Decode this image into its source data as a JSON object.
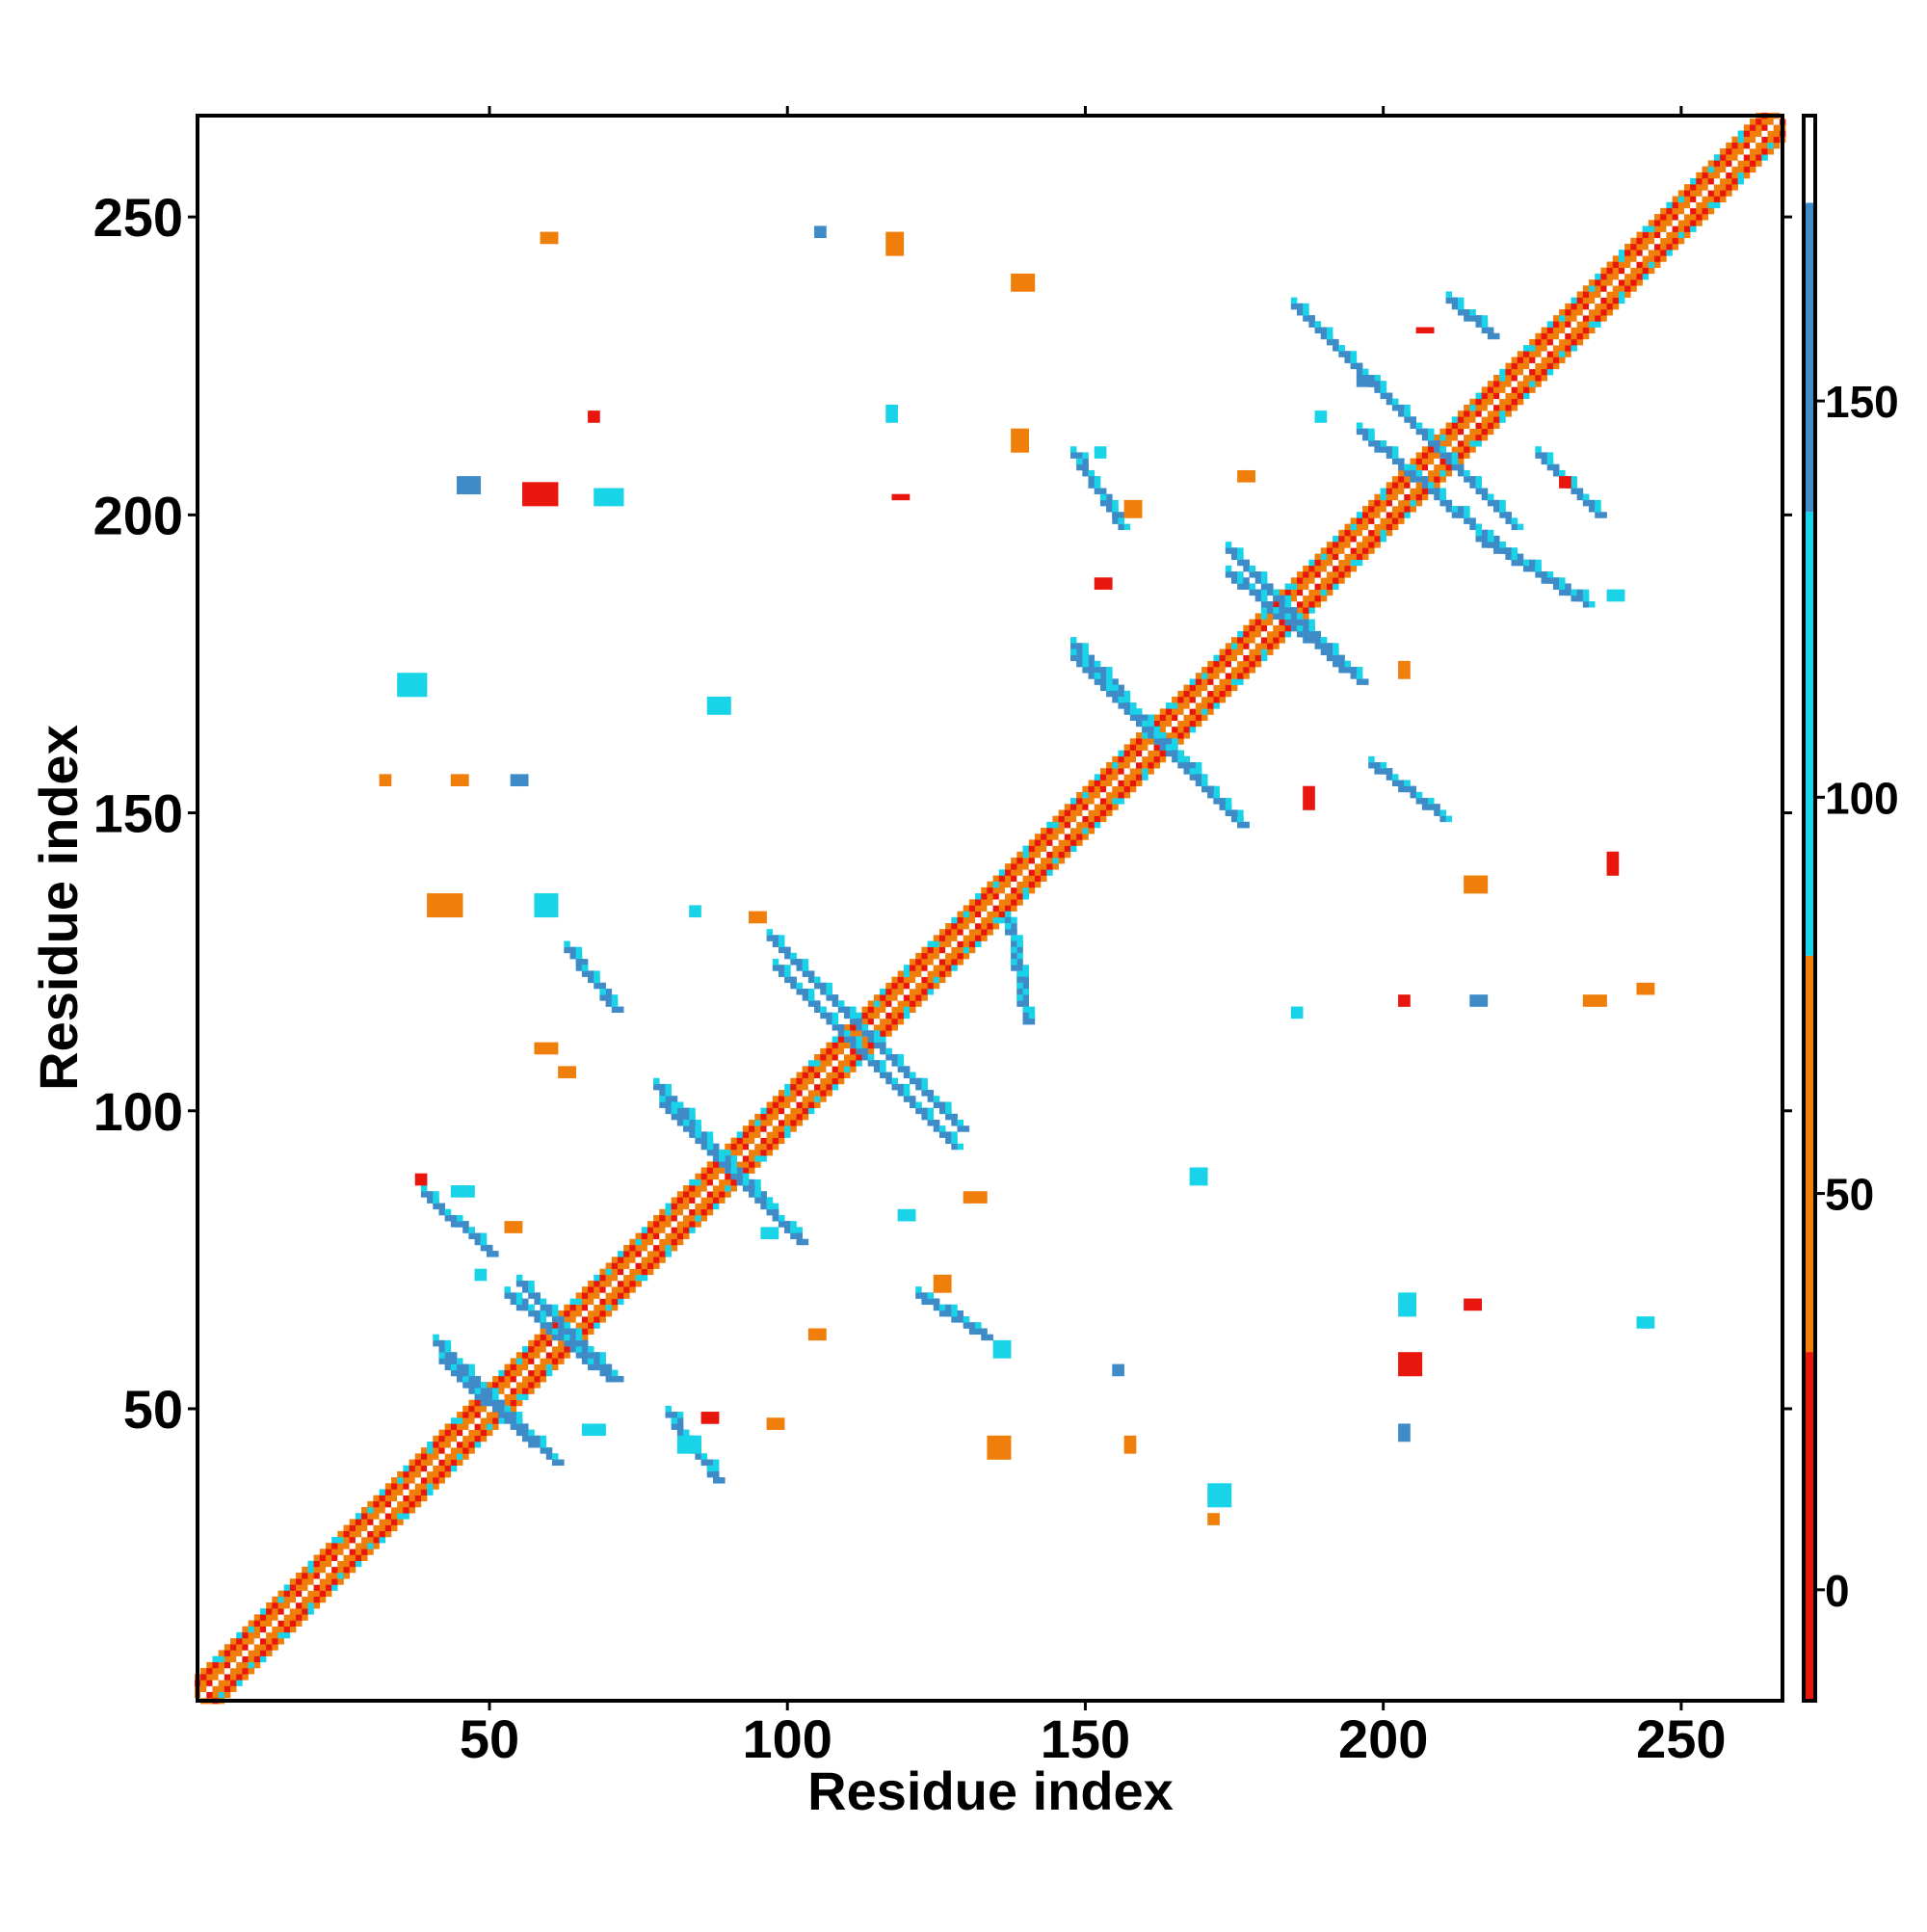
{
  "chart_data": {
    "type": "heatmap",
    "title": "",
    "xlabel": "Residue index",
    "ylabel": "Residue index",
    "xlim": [
      1,
      267
    ],
    "ylim": [
      1,
      267
    ],
    "x_ticks": [
      50,
      100,
      150,
      200,
      250
    ],
    "y_ticks": [
      50,
      100,
      150,
      200,
      250
    ],
    "grid": false,
    "legend": "none",
    "colorbar": {
      "ticks": [
        0,
        50,
        100,
        150
      ],
      "range": [
        -14,
        186
      ],
      "color_stops": [
        {
          "from": -14,
          "to": 30,
          "color": "#e8160c"
        },
        {
          "from": 30,
          "to": 80,
          "color": "#f07e0a"
        },
        {
          "from": 80,
          "to": 136,
          "color": "#19d4e8"
        },
        {
          "from": 136,
          "to": 175,
          "color": "#3e8bc8"
        },
        {
          "from": 175,
          "to": 186,
          "color": "#ffffff"
        }
      ]
    },
    "diagonal_band": {
      "from": 1,
      "to": 267,
      "width": 4,
      "colors": [
        "#e8160c",
        "#f07e0a",
        "#19d4e8"
      ]
    },
    "cross_patterns": [
      {
        "center": [
          113,
          113
        ],
        "arm": 16,
        "color": "#3e8bc8",
        "outline": "#19d4e8"
      },
      {
        "center": [
          90,
          90
        ],
        "arm": 11,
        "color": "#3e8bc8",
        "outline": "#19d4e8"
      },
      {
        "center": [
          162,
          162
        ],
        "arm": 14,
        "color": "#3e8bc8",
        "outline": "#19d4e8"
      },
      {
        "center": [
          184,
          184
        ],
        "arm": 10,
        "color": "#3e8bc8",
        "outline": "#19d4e8"
      },
      {
        "center": [
          210,
          210
        ],
        "arm": 12,
        "color": "#3e8bc8",
        "outline": "#19d4e8"
      },
      {
        "center": [
          51,
          51
        ],
        "arm": 10,
        "color": "#3e8bc8",
        "outline": "#19d4e8"
      },
      {
        "center": [
          63,
          63
        ],
        "arm": 8,
        "color": "#3e8bc8",
        "outline": "#19d4e8"
      }
    ],
    "strands": [
      {
        "from": [
          98,
          124
        ],
        "to": [
          128,
          94
        ],
        "color": "#3e8bc8"
      },
      {
        "from": [
          78,
          104
        ],
        "to": [
          102,
          78
        ],
        "color": "#3e8bc8"
      },
      {
        "from": [
          148,
          178
        ],
        "to": [
          176,
          148
        ],
        "color": "#3e8bc8"
      },
      {
        "from": [
          174,
          190
        ],
        "to": [
          196,
          172
        ],
        "color": "#3e8bc8"
      },
      {
        "from": [
          196,
          214
        ],
        "to": [
          222,
          192
        ],
        "color": "#3e8bc8"
      },
      {
        "from": [
          185,
          235
        ],
        "to": [
          198,
          222
        ],
        "color": "#3e8bc8"
      },
      {
        "from": [
          148,
          210
        ],
        "to": [
          156,
          198
        ],
        "color": "#3e8bc8"
      },
      {
        "from": [
          211,
          236
        ],
        "to": [
          218,
          230
        ],
        "color": "#3e8bc8"
      },
      {
        "from": [
          226,
          210
        ],
        "to": [
          236,
          200
        ],
        "color": "#3e8bc8"
      },
      {
        "from": [
          216,
          196
        ],
        "to": [
          234,
          185
        ],
        "color": "#3e8bc8"
      },
      {
        "from": [
          198,
          158
        ],
        "to": [
          210,
          149
        ],
        "color": "#3e8bc8"
      },
      {
        "from": [
          39,
          86
        ],
        "to": [
          50,
          76
        ],
        "color": "#3e8bc8"
      },
      {
        "from": [
          42,
          58
        ],
        "to": [
          57,
          44
        ],
        "color": "#3e8bc8"
      },
      {
        "from": [
          53,
          69
        ],
        "to": [
          70,
          55
        ],
        "color": "#3e8bc8"
      },
      {
        "from": [
          63,
          127
        ],
        "to": [
          71,
          117
        ],
        "color": "#3e8bc8"
      },
      {
        "from": [
          80,
          49
        ],
        "to": [
          88,
          38
        ],
        "color": "#3e8bc8"
      },
      {
        "from": [
          122,
          69
        ],
        "to": [
          133,
          62
        ],
        "color": "#3e8bc8"
      },
      {
        "from": [
          137,
          132
        ],
        "to": [
          140,
          115
        ],
        "color": "#3e8bc8"
      }
    ],
    "blobs": [
      {
        "x": 35,
        "y": 170,
        "w": 5,
        "h": 4,
        "color": "#19d4e8"
      },
      {
        "x": 40,
        "y": 133,
        "w": 6,
        "h": 4,
        "color": "#f07e0a"
      },
      {
        "x": 58,
        "y": 133,
        "w": 4,
        "h": 4,
        "color": "#19d4e8"
      },
      {
        "x": 56,
        "y": 202,
        "w": 6,
        "h": 4,
        "color": "#e8160c"
      },
      {
        "x": 68,
        "y": 202,
        "w": 5,
        "h": 3,
        "color": "#19d4e8"
      },
      {
        "x": 45,
        "y": 204,
        "w": 4,
        "h": 3,
        "color": "#3e8bc8"
      },
      {
        "x": 87,
        "y": 167,
        "w": 4,
        "h": 3,
        "color": "#19d4e8"
      },
      {
        "x": 54,
        "y": 155,
        "w": 3,
        "h": 2,
        "color": "#3e8bc8"
      },
      {
        "x": 104,
        "y": 62,
        "w": 3,
        "h": 2,
        "color": "#f07e0a"
      },
      {
        "x": 97,
        "y": 47,
        "w": 3,
        "h": 2,
        "color": "#f07e0a"
      },
      {
        "x": 134,
        "y": 42,
        "w": 4,
        "h": 4,
        "color": "#f07e0a"
      },
      {
        "x": 135,
        "y": 59,
        "w": 3,
        "h": 3,
        "color": "#19d4e8"
      },
      {
        "x": 171,
        "y": 34,
        "w": 4,
        "h": 4,
        "color": "#19d4e8"
      },
      {
        "x": 168,
        "y": 88,
        "w": 3,
        "h": 3,
        "color": "#19d4e8"
      },
      {
        "x": 203,
        "y": 66,
        "w": 3,
        "h": 4,
        "color": "#19d4e8"
      },
      {
        "x": 203,
        "y": 56,
        "w": 4,
        "h": 4,
        "color": "#e8160c"
      },
      {
        "x": 203,
        "y": 45,
        "w": 2,
        "h": 3,
        "color": "#3e8bc8"
      },
      {
        "x": 214,
        "y": 67,
        "w": 3,
        "h": 2,
        "color": "#e8160c"
      },
      {
        "x": 214,
        "y": 137,
        "w": 4,
        "h": 3,
        "color": "#f07e0a"
      },
      {
        "x": 238,
        "y": 140,
        "w": 2,
        "h": 4,
        "color": "#e8160c"
      },
      {
        "x": 138,
        "y": 238,
        "w": 4,
        "h": 3,
        "color": "#f07e0a"
      },
      {
        "x": 138,
        "y": 211,
        "w": 3,
        "h": 4,
        "color": "#f07e0a"
      },
      {
        "x": 67,
        "y": 216,
        "w": 2,
        "h": 2,
        "color": "#e8160c"
      },
      {
        "x": 117,
        "y": 216,
        "w": 2,
        "h": 3,
        "color": "#19d4e8"
      },
      {
        "x": 118,
        "y": 203,
        "w": 3,
        "h": 1,
        "color": "#e8160c"
      },
      {
        "x": 157,
        "y": 200,
        "w": 3,
        "h": 3,
        "color": "#f07e0a"
      },
      {
        "x": 176,
        "y": 206,
        "w": 3,
        "h": 2,
        "color": "#f07e0a"
      },
      {
        "x": 152,
        "y": 188,
        "w": 3,
        "h": 2,
        "color": "#e8160c"
      },
      {
        "x": 187,
        "y": 151,
        "w": 2,
        "h": 4,
        "color": "#e8160c"
      },
      {
        "x": 203,
        "y": 173,
        "w": 2,
        "h": 3,
        "color": "#f07e0a"
      },
      {
        "x": 238,
        "y": 186,
        "w": 3,
        "h": 2,
        "color": "#19d4e8"
      },
      {
        "x": 215,
        "y": 118,
        "w": 3,
        "h": 2,
        "color": "#3e8bc8"
      },
      {
        "x": 234,
        "y": 118,
        "w": 4,
        "h": 2,
        "color": "#f07e0a"
      },
      {
        "x": 206,
        "y": 231,
        "w": 3,
        "h": 1,
        "color": "#e8160c"
      },
      {
        "x": 196,
        "y": 222,
        "w": 3,
        "h": 2,
        "color": "#3e8bc8"
      },
      {
        "x": 96,
        "y": 79,
        "w": 3,
        "h": 2,
        "color": "#19d4e8"
      },
      {
        "x": 130,
        "y": 85,
        "w": 4,
        "h": 2,
        "color": "#f07e0a"
      },
      {
        "x": 119,
        "y": 82,
        "w": 3,
        "h": 2,
        "color": "#19d4e8"
      },
      {
        "x": 125,
        "y": 70,
        "w": 3,
        "h": 3,
        "color": "#f07e0a"
      },
      {
        "x": 44,
        "y": 86,
        "w": 4,
        "h": 2,
        "color": "#19d4e8"
      },
      {
        "x": 53,
        "y": 80,
        "w": 3,
        "h": 2,
        "color": "#f07e0a"
      },
      {
        "x": 66,
        "y": 46,
        "w": 4,
        "h": 2,
        "color": "#19d4e8"
      },
      {
        "x": 58,
        "y": 110,
        "w": 4,
        "h": 2,
        "color": "#f07e0a"
      },
      {
        "x": 82,
        "y": 43,
        "w": 4,
        "h": 3,
        "color": "#19d4e8"
      },
      {
        "x": 86,
        "y": 48,
        "w": 3,
        "h": 2,
        "color": "#e8160c"
      },
      {
        "x": 243,
        "y": 64,
        "w": 3,
        "h": 2,
        "color": "#19d4e8"
      },
      {
        "x": 243,
        "y": 120,
        "w": 3,
        "h": 2,
        "color": "#f07e0a"
      },
      {
        "x": 117,
        "y": 244,
        "w": 3,
        "h": 4,
        "color": "#f07e0a"
      },
      {
        "x": 59,
        "y": 246,
        "w": 3,
        "h": 2,
        "color": "#f07e0a"
      },
      {
        "x": 157,
        "y": 43,
        "w": 2,
        "h": 3,
        "color": "#f07e0a"
      },
      {
        "x": 155,
        "y": 56,
        "w": 2,
        "h": 2,
        "color": "#3e8bc8"
      },
      {
        "x": 185,
        "y": 116,
        "w": 2,
        "h": 2,
        "color": "#19d4e8"
      },
      {
        "x": 203,
        "y": 118,
        "w": 2,
        "h": 2,
        "color": "#e8160c"
      },
      {
        "x": 32,
        "y": 155,
        "w": 2,
        "h": 2,
        "color": "#f07e0a"
      },
      {
        "x": 44,
        "y": 155,
        "w": 3,
        "h": 2,
        "color": "#f07e0a"
      },
      {
        "x": 38,
        "y": 88,
        "w": 2,
        "h": 2,
        "color": "#e8160c"
      },
      {
        "x": 48,
        "y": 72,
        "w": 2,
        "h": 2,
        "color": "#19d4e8"
      },
      {
        "x": 62,
        "y": 106,
        "w": 3,
        "h": 2,
        "color": "#f07e0a"
      },
      {
        "x": 84,
        "y": 133,
        "w": 2,
        "h": 2,
        "color": "#19d4e8"
      },
      {
        "x": 94,
        "y": 132,
        "w": 3,
        "h": 2,
        "color": "#f07e0a"
      },
      {
        "x": 152,
        "y": 210,
        "w": 2,
        "h": 2,
        "color": "#19d4e8"
      },
      {
        "x": 105,
        "y": 247,
        "w": 2,
        "h": 2,
        "color": "#3e8bc8"
      },
      {
        "x": 189,
        "y": 216,
        "w": 2,
        "h": 2,
        "color": "#19d4e8"
      },
      {
        "x": 230,
        "y": 205,
        "w": 2,
        "h": 2,
        "color": "#e8160c"
      },
      {
        "x": 171,
        "y": 31,
        "w": 2,
        "h": 2,
        "color": "#f07e0a"
      }
    ]
  }
}
